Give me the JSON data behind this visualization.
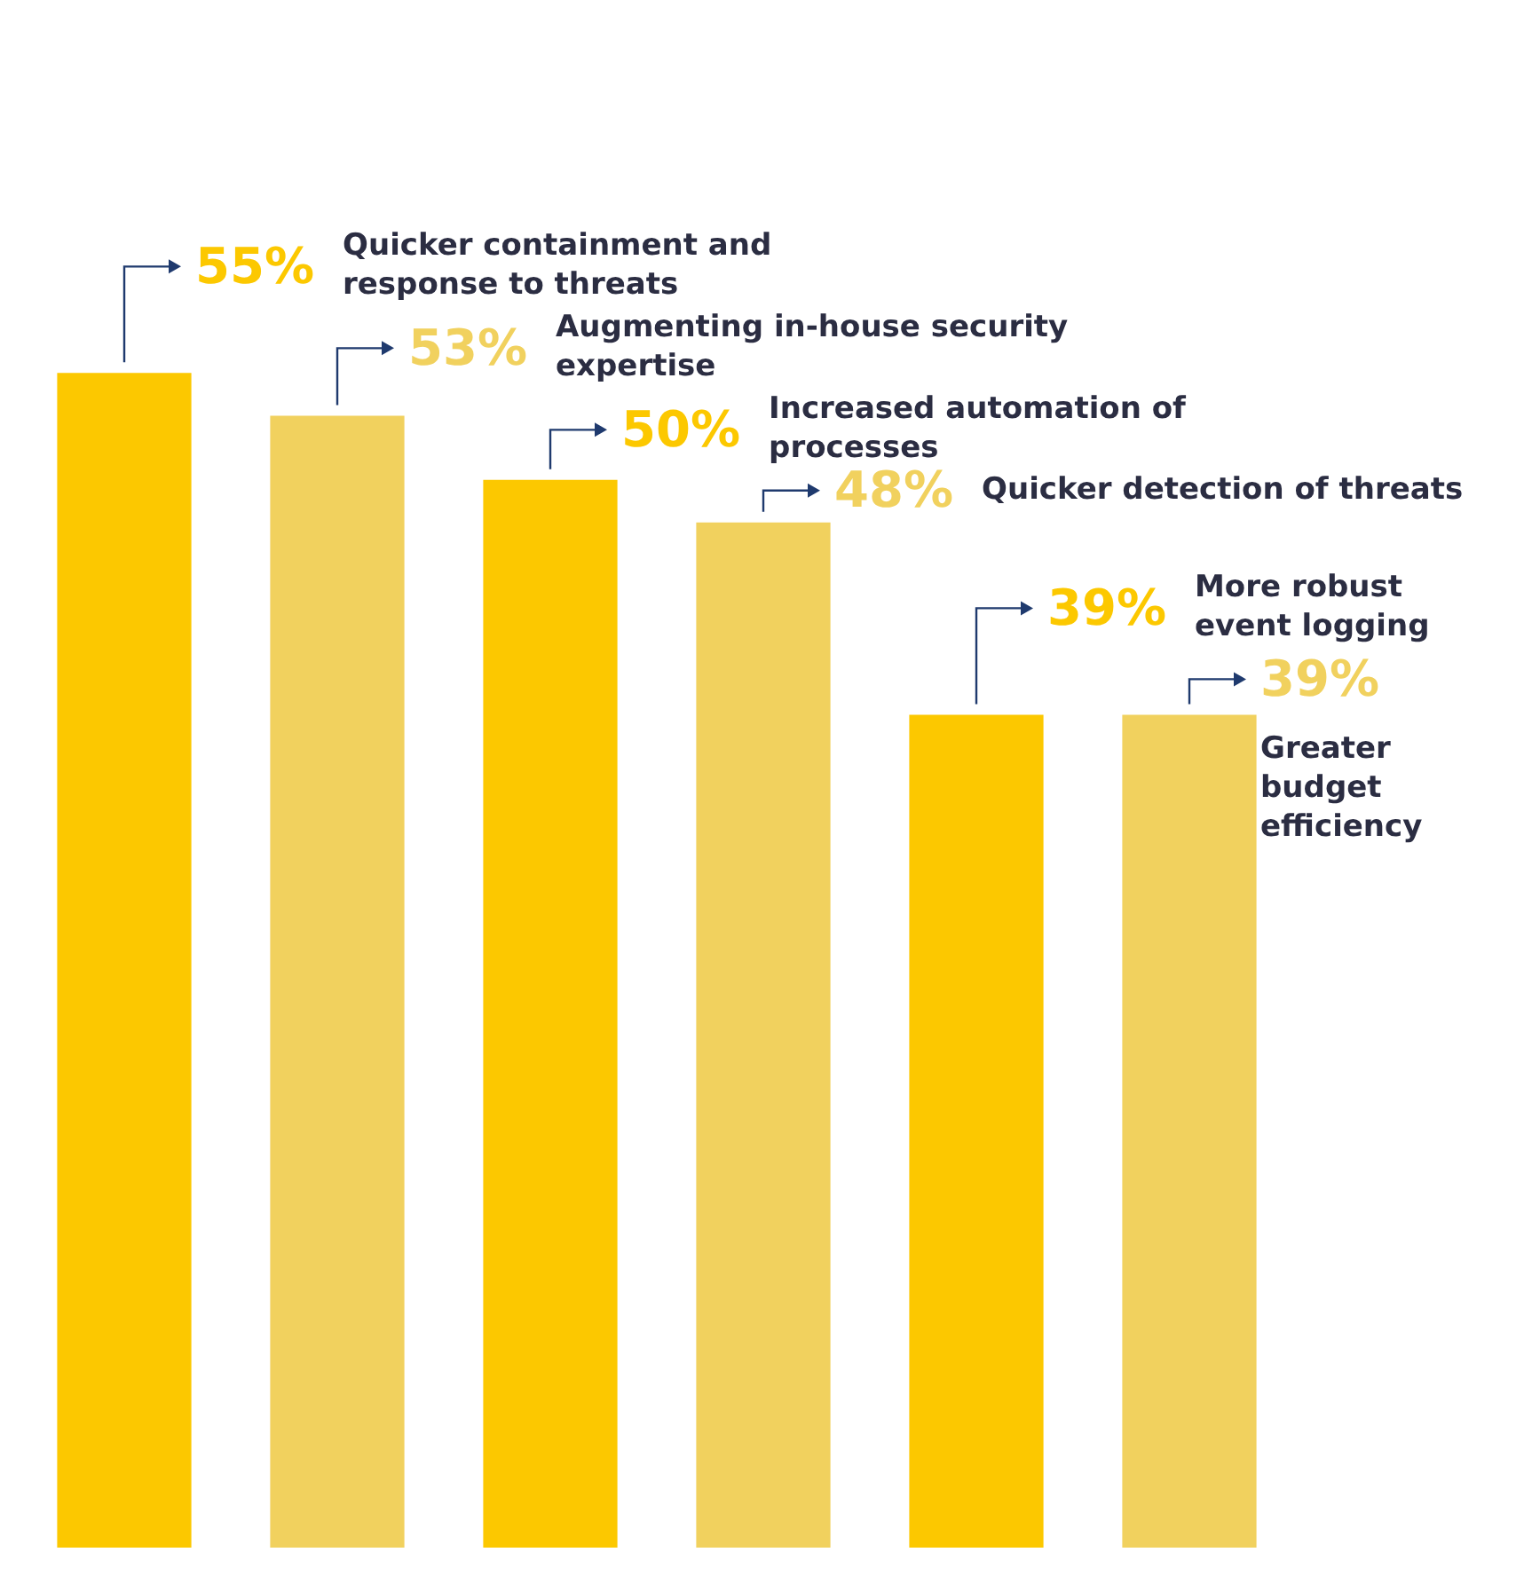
{
  "chart_data": {
    "type": "bar",
    "categories": [
      null,
      null,
      null,
      null,
      null,
      null
    ],
    "annotations": [
      "Quicker containment and response to threats",
      "Augmenting in-house security expertise",
      "Increased automation of processes",
      "Quicker detection of threats",
      "More robust event logging",
      "Greater budget efficiency"
    ],
    "values": [
      55,
      53,
      50,
      48,
      39,
      39
    ],
    "colors": [
      "#fcc800",
      "#f1d15e",
      "#fcc800",
      "#f1d15e",
      "#fcc800",
      "#f1d15e"
    ],
    "value_labels": [
      "55%",
      "53%",
      "50%",
      "48%",
      "39%",
      "39%"
    ],
    "legend": false
  }
}
